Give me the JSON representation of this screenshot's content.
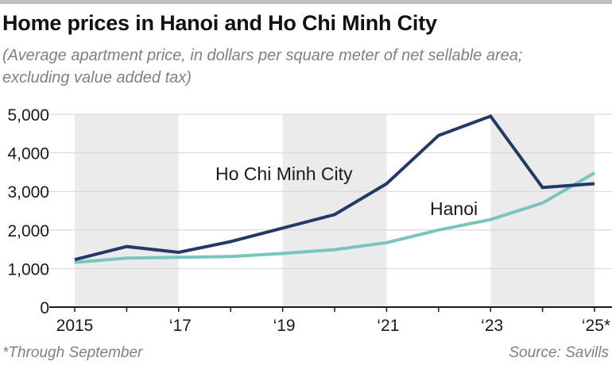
{
  "header": {
    "title": "Home prices in Hanoi and Ho Chi Minh City",
    "subtitle": "(Average apartment price, in dollars per square meter of net sellable area; excluding value added tax)"
  },
  "footer": {
    "footnote": "*Through September",
    "source": "Source: Savills"
  },
  "colors": {
    "hcmc": "#233a66",
    "hanoi": "#79c4bb",
    "band": "#ebebeb",
    "grid": "#d4d4d4",
    "axis": "#1a1a1a"
  },
  "chart_data": {
    "type": "line",
    "x": [
      2015,
      2016,
      2017,
      2018,
      2019,
      2020,
      2021,
      2022,
      2023,
      2024,
      2025
    ],
    "xlim": [
      2015,
      2025
    ],
    "ylim": [
      0,
      5000
    ],
    "yticks": [
      0,
      1000,
      2000,
      3000,
      4000,
      5000
    ],
    "ytick_labels": [
      "0",
      "1,000",
      "2,000",
      "3,000",
      "4,000",
      "5,000"
    ],
    "xticks": [
      2015,
      2017,
      2019,
      2021,
      2023,
      2025
    ],
    "xtick_labels": [
      "2015",
      "‘17",
      "‘19",
      "‘21",
      "‘23",
      "‘25*"
    ],
    "shaded_bands": [
      [
        2015,
        2017
      ],
      [
        2019,
        2021
      ],
      [
        2023,
        2025
      ]
    ],
    "series": [
      {
        "name": "Ho Chi Minh City",
        "label": "Ho Chi Minh City",
        "color_key": "hcmc",
        "values": [
          1230,
          1570,
          1420,
          1700,
          2050,
          2400,
          3200,
          4450,
          4950,
          3100,
          3200
        ]
      },
      {
        "name": "Hanoi",
        "label": "Hanoi",
        "color_key": "hanoi",
        "values": [
          1160,
          1270,
          1290,
          1310,
          1390,
          1490,
          1670,
          2000,
          2270,
          2700,
          3480
        ]
      }
    ],
    "grid": true,
    "xlabel": "",
    "ylabel": ""
  }
}
